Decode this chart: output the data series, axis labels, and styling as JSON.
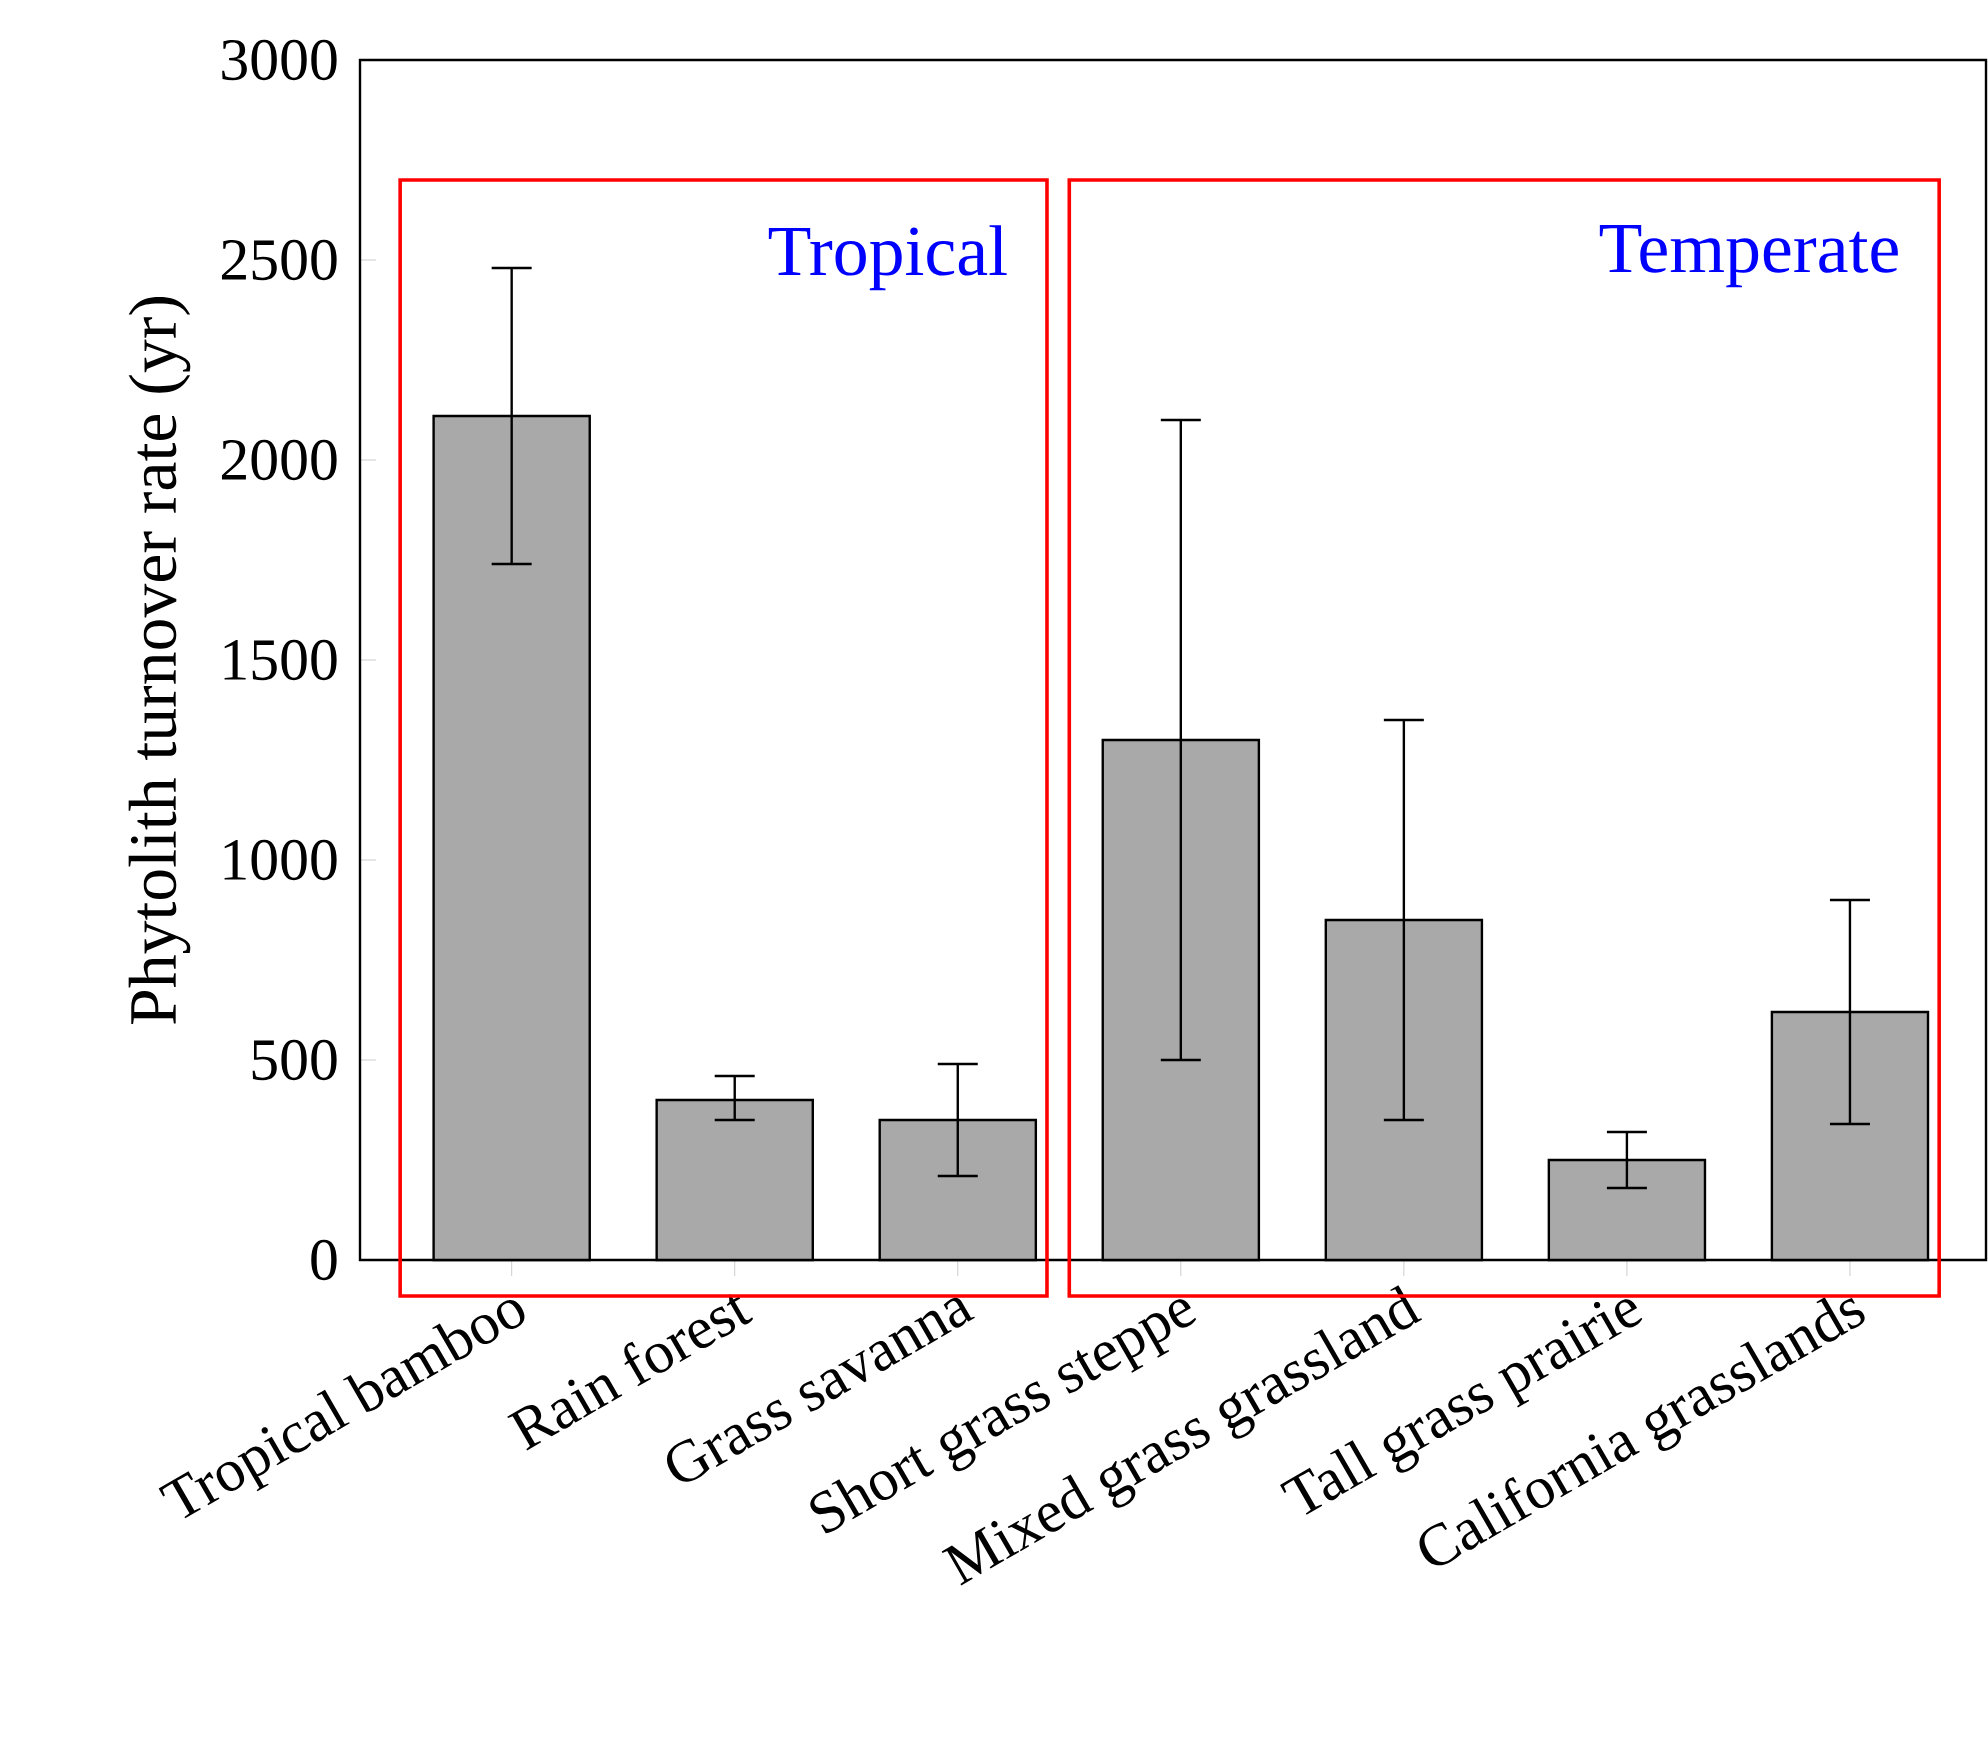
{
  "chart_data": {
    "type": "bar",
    "ylabel": "Phytolith turnover rate (yr)",
    "categories": [
      "Tropical bamboo",
      "Rain forest",
      "Grass savanna",
      "Short grass steppe",
      "Mixed grass grassland",
      "Tall grass prairie",
      "California grasslands"
    ],
    "values": [
      2110,
      400,
      350,
      1300,
      850,
      250,
      620
    ],
    "errors": [
      [
        1740,
        2480
      ],
      [
        350,
        460
      ],
      [
        210,
        490
      ],
      [
        500,
        2100
      ],
      [
        350,
        1350
      ],
      [
        180,
        320
      ],
      [
        340,
        900
      ]
    ],
    "color": "#a9a9a9",
    "ylim": [
      0,
      3000
    ],
    "yticks": [
      0,
      500,
      1000,
      1500,
      2000,
      2500,
      3000
    ],
    "annotations": [
      "Tropical",
      "Temperate"
    ]
  }
}
